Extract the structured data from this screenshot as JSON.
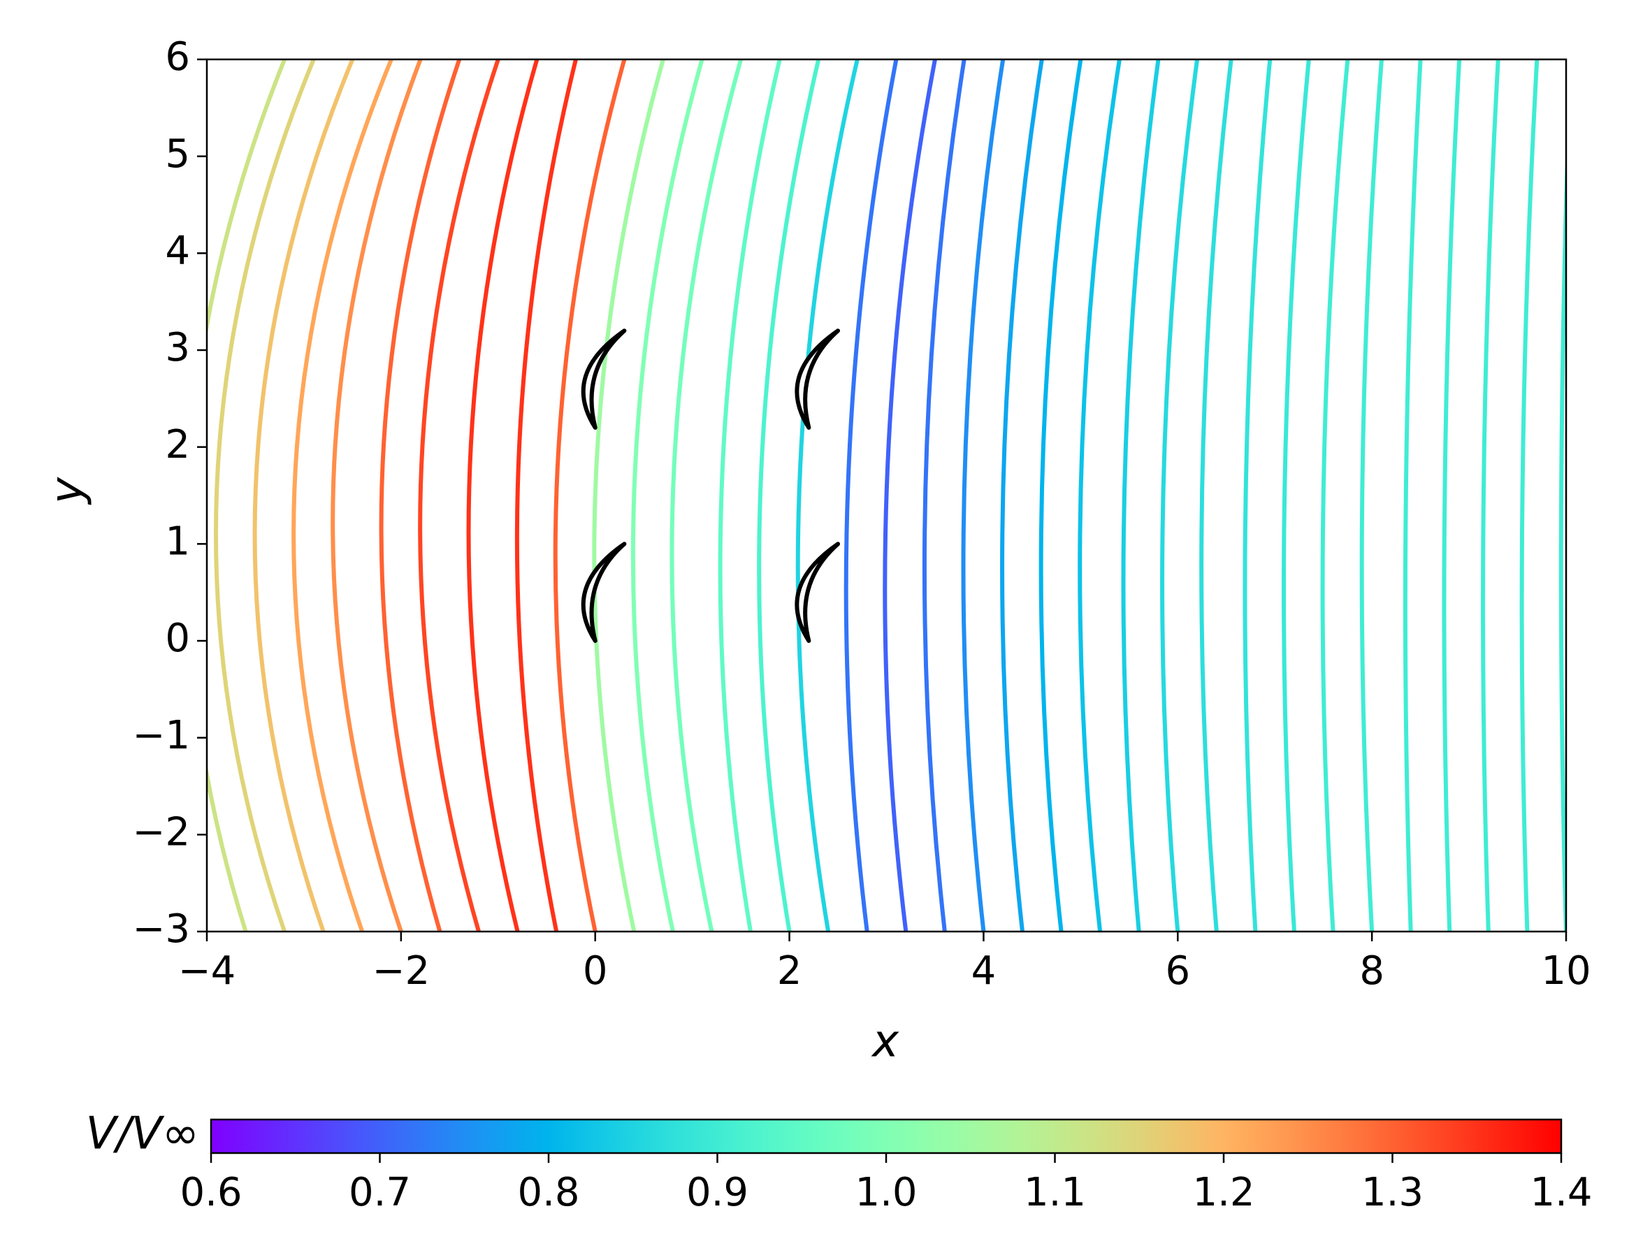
{
  "chart_data": {
    "type": "streamplot",
    "xlabel": "x",
    "ylabel": "y",
    "xlim": [
      -4,
      10
    ],
    "ylim": [
      -3,
      6
    ],
    "xticks": [
      {
        "value": -4,
        "label": "−4"
      },
      {
        "value": -2,
        "label": "−2"
      },
      0,
      2,
      4,
      6,
      8,
      10
    ],
    "yticks": [
      {
        "value": -3,
        "label": "−3"
      },
      {
        "value": -2,
        "label": "−2"
      },
      {
        "value": -1,
        "label": "−1"
      },
      0,
      1,
      2,
      3,
      4,
      5,
      6
    ],
    "colormap": "rainbow",
    "colorbar_label": "V/V∞",
    "clim": [
      0.6,
      1.4
    ],
    "cticks": [
      0.6,
      0.7,
      0.8,
      0.9,
      {
        "value": 1,
        "label": "1.0"
      },
      1.1,
      1.2,
      1.3,
      1.4
    ],
    "streamline_y": [
      -3,
      1.5,
      6
    ],
    "streamlines": [
      {
        "x": [
          -3.6,
          -4.2,
          -3.2
        ],
        "speed": 1.12
      },
      {
        "x": [
          -3.2,
          -3.9,
          -2.9
        ],
        "speed": 1.15
      },
      {
        "x": [
          -2.8,
          -3.5,
          -2.5
        ],
        "speed": 1.18
      },
      {
        "x": [
          -2.4,
          -3.1,
          -2.1
        ],
        "speed": 1.22
      },
      {
        "x": [
          -2.0,
          -2.7,
          -1.8
        ],
        "speed": 1.25
      },
      {
        "x": [
          -1.6,
          -2.2,
          -1.4
        ],
        "speed": 1.3
      },
      {
        "x": [
          -1.2,
          -1.8,
          -1.0
        ],
        "speed": 1.33
      },
      {
        "x": [
          -0.8,
          -1.3,
          -0.6
        ],
        "speed": 1.35
      },
      {
        "x": [
          -0.4,
          -0.8,
          -0.2
        ],
        "speed": 1.35
      },
      {
        "x": [
          0.0,
          -0.4,
          0.3
        ],
        "speed": 1.3
      },
      {
        "x": [
          0.4,
          0.0,
          0.7
        ],
        "speed": 1.05
      },
      {
        "x": [
          0.8,
          0.4,
          1.1
        ],
        "speed": 1.0
      },
      {
        "x": [
          1.2,
          0.8,
          1.5
        ],
        "speed": 0.98
      },
      {
        "x": [
          1.6,
          1.3,
          1.9
        ],
        "speed": 0.95
      },
      {
        "x": [
          2.0,
          1.7,
          2.3
        ],
        "speed": 0.92
      },
      {
        "x": [
          2.4,
          2.1,
          2.7
        ],
        "speed": 0.85
      },
      {
        "x": [
          2.8,
          2.6,
          3.1
        ],
        "speed": 0.72
      },
      {
        "x": [
          3.2,
          3.0,
          3.5
        ],
        "speed": 0.7
      },
      {
        "x": [
          3.6,
          3.4,
          3.8
        ],
        "speed": 0.72
      },
      {
        "x": [
          4.0,
          3.8,
          4.2
        ],
        "speed": 0.75
      },
      {
        "x": [
          4.4,
          4.2,
          4.6
        ],
        "speed": 0.78
      },
      {
        "x": [
          4.8,
          4.6,
          5.0
        ],
        "speed": 0.8
      },
      {
        "x": [
          5.2,
          5.0,
          5.4
        ],
        "speed": 0.82
      },
      {
        "x": [
          5.6,
          5.45,
          5.8
        ],
        "speed": 0.84
      },
      {
        "x": [
          6.0,
          5.85,
          6.2
        ],
        "speed": 0.86
      },
      {
        "x": [
          6.4,
          6.25,
          6.55
        ],
        "speed": 0.87
      },
      {
        "x": [
          6.8,
          6.7,
          6.95
        ],
        "speed": 0.88
      },
      {
        "x": [
          7.2,
          7.1,
          7.35
        ],
        "speed": 0.89
      },
      {
        "x": [
          7.6,
          7.5,
          7.75
        ],
        "speed": 0.9
      },
      {
        "x": [
          8.0,
          7.9,
          8.1
        ],
        "speed": 0.9
      },
      {
        "x": [
          8.4,
          8.35,
          8.5
        ],
        "speed": 0.9
      },
      {
        "x": [
          8.8,
          8.75,
          8.9
        ],
        "speed": 0.9
      },
      {
        "x": [
          9.2,
          9.15,
          9.3
        ],
        "speed": 0.9
      },
      {
        "x": [
          9.6,
          9.55,
          9.7
        ],
        "speed": 0.9
      },
      {
        "x": [
          10.0,
          9.95,
          10.05
        ],
        "speed": 0.9
      }
    ],
    "blades": [
      {
        "x": 0,
        "y": 0
      },
      {
        "x": 0,
        "y": 2.2
      },
      {
        "x": 2.2,
        "y": 0
      },
      {
        "x": 2.2,
        "y": 2.2
      }
    ]
  }
}
